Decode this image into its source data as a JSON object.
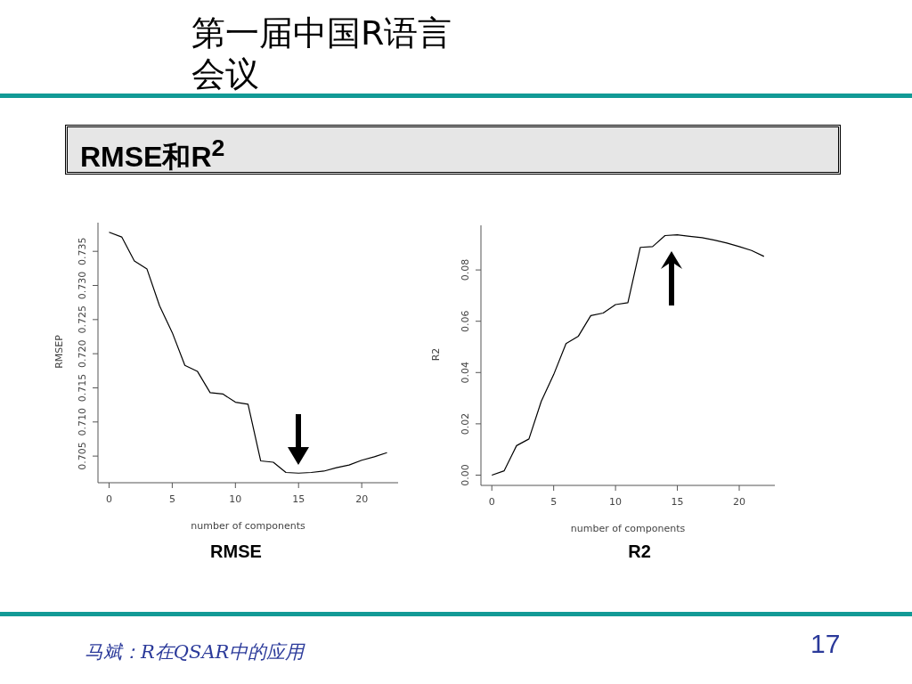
{
  "chart_data": [
    {
      "type": "other",
      "title": "第一届中国R语言会议",
      "subtitle": "RMSE和R$^{2}$",
      "annotations": [
        "马斌：R在QSAR中的应用",
        "17"
      ]
    },
    {
      "type": "line",
      "xlabel": "number of components",
      "ylabel": "RMSEP",
      "annotations": [
        "RMSE"
      ],
      "x": [
        0,
        1,
        2,
        3,
        4,
        5,
        6,
        7,
        8,
        9,
        10,
        11,
        12,
        13,
        14,
        15,
        16,
        17,
        18,
        19,
        20,
        21,
        22
      ],
      "series": [
        {
          "color": "#000000",
          "values": [
            0.7378,
            0.7371,
            0.7336,
            0.7324,
            0.727,
            0.7231,
            0.7183,
            0.7174,
            0.7143,
            0.7141,
            0.7129,
            0.7126,
            0.7043,
            0.7041,
            0.7026,
            0.7025,
            0.7026,
            0.7028,
            0.7033,
            0.7037,
            0.7044,
            0.7049,
            0.7055
          ]
        }
      ],
      "xlim": [
        -0.88,
        22.88
      ],
      "ylim": [
        0.7011,
        0.7392
      ],
      "xticks": [
        0,
        5,
        10,
        15,
        20
      ],
      "yticks": [
        0.705,
        {
          "value": 0.71,
          "label": "0.710"
        },
        0.715,
        {
          "value": 0.72,
          "label": "0.720"
        },
        0.725,
        {
          "value": 0.73,
          "label": "0.730"
        },
        0.735
      ]
    },
    {
      "type": "line",
      "xlabel": "number of components",
      "ylabel": "R2",
      "annotations": [
        "R2"
      ],
      "x": [
        0,
        1,
        2,
        3,
        4,
        5,
        6,
        7,
        8,
        9,
        10,
        11,
        12,
        13,
        14,
        15,
        16,
        17,
        18,
        19,
        20,
        21,
        22
      ],
      "series": [
        {
          "color": "#000000",
          "values": [
            0.0,
            0.0017,
            0.0115,
            0.0141,
            0.0288,
            0.0392,
            0.0513,
            0.0542,
            0.0622,
            0.0632,
            0.0665,
            0.0672,
            0.0888,
            0.0891,
            0.0934,
            0.0937,
            0.0931,
            0.0926,
            0.0916,
            0.0905,
            0.0891,
            0.0876,
            0.0853
          ]
        }
      ],
      "xlim": [
        -0.88,
        22.88
      ],
      "ylim": [
        -0.004,
        0.0974
      ],
      "xticks": [
        0,
        5,
        10,
        15,
        20
      ],
      "yticks": [
        {
          "value": 0,
          "label": "0.00"
        },
        {
          "value": 0.02,
          "label": "0.02"
        },
        {
          "value": 0.04,
          "label": "0.04"
        },
        {
          "value": 0.06,
          "label": "0.06"
        },
        {
          "value": 0.08,
          "label": "0.08"
        }
      ]
    }
  ]
}
